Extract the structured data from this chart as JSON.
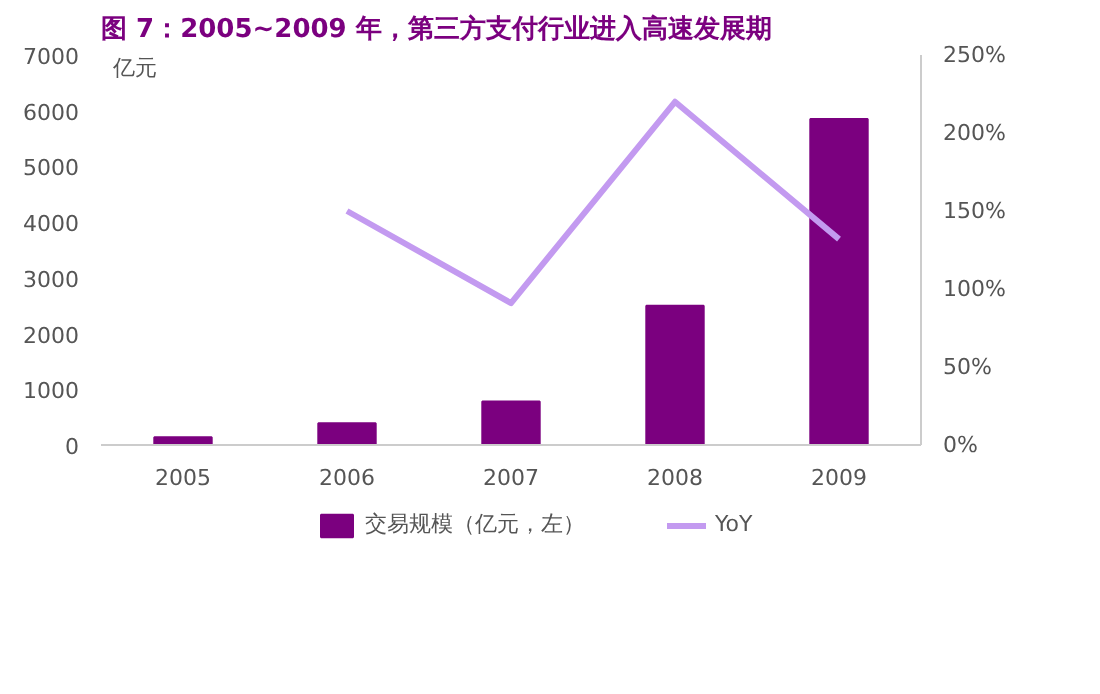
{
  "chart_data": {
    "type": "bar",
    "title": "图 7：2005~2009 年，第三方支付行业进入高速发展期",
    "ylabel": "亿元",
    "categories": [
      "2005",
      "2006",
      "2007",
      "2008",
      "2009"
    ],
    "series": [
      {
        "name": "交易规模（亿元，左）",
        "color": "#7b007f",
        "values": [
          140,
          390,
          780,
          2500,
          5850
        ]
      },
      {
        "name": "YoY",
        "type": "line",
        "color": "#c39af0",
        "axis": "y2",
        "values": [
          null,
          150,
          91,
          220,
          132
        ]
      }
    ],
    "ylim": [
      0,
      7000
    ],
    "yticks": [
      0,
      1000,
      2000,
      3000,
      4000,
      5000,
      6000,
      7000
    ],
    "y2lim": [
      0,
      250
    ],
    "y2ticks": [
      {
        "value": 0,
        "label": "0%"
      },
      {
        "value": 50,
        "label": "50%"
      },
      {
        "value": 100,
        "label": "100%"
      },
      {
        "value": 150,
        "label": "150%"
      },
      {
        "value": 200,
        "label": "200%"
      },
      {
        "value": 250,
        "label": "250%"
      }
    ],
    "grid": false,
    "legend": "bottom"
  }
}
